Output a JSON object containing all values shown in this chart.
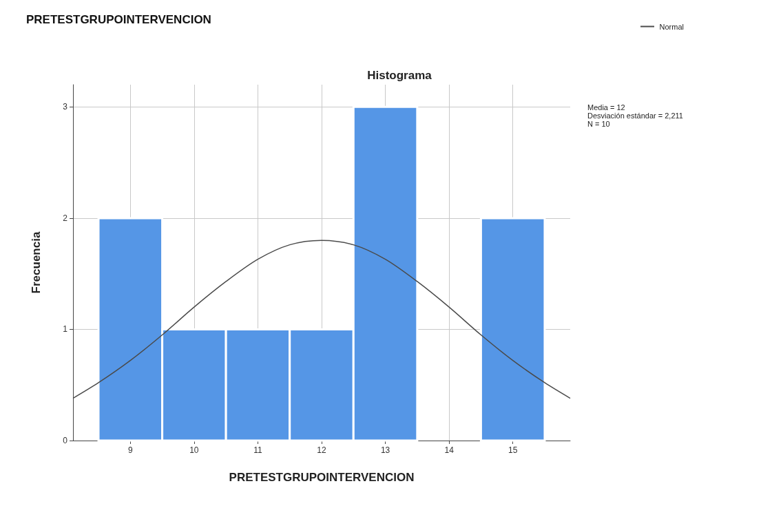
{
  "chart_data": {
    "type": "histogram",
    "title": "Histograma",
    "xlabel": "PRETESTGRUPOINTERVENCION",
    "ylabel": "Frecuencia",
    "bins": [
      8.5,
      9.5,
      10.5,
      11.5,
      12.5,
      13.5,
      14.5,
      15.5
    ],
    "values": [
      2,
      1,
      1,
      1,
      3,
      0,
      2
    ],
    "color": "#5596e6",
    "xlim": [
      8.1,
      15.9
    ],
    "xticks": [
      9,
      10,
      11,
      12,
      13,
      14,
      15
    ],
    "ylim": [
      0,
      3.2
    ],
    "yticks": [
      0,
      1,
      2,
      3
    ],
    "grid": true,
    "legend": "top right",
    "series": [
      {
        "name": "Normal",
        "type": "line",
        "color": "#4a4a4a",
        "x": [
          8.1,
          8.5,
          9,
          9.5,
          10,
          10.5,
          11,
          11.5,
          12,
          12.5,
          13,
          13.5,
          14,
          14.5,
          15,
          15.5,
          15.9
        ],
        "values": [
          0.38,
          0.52,
          0.72,
          0.95,
          1.2,
          1.43,
          1.63,
          1.76,
          1.8,
          1.76,
          1.63,
          1.43,
          1.2,
          0.95,
          0.72,
          0.52,
          0.38
        ]
      }
    ],
    "annotations": [
      "PRETESTGRUPOINTERVENCION",
      "Media = 12\nDesviación estándar = 2,211\nN = 10"
    ]
  }
}
